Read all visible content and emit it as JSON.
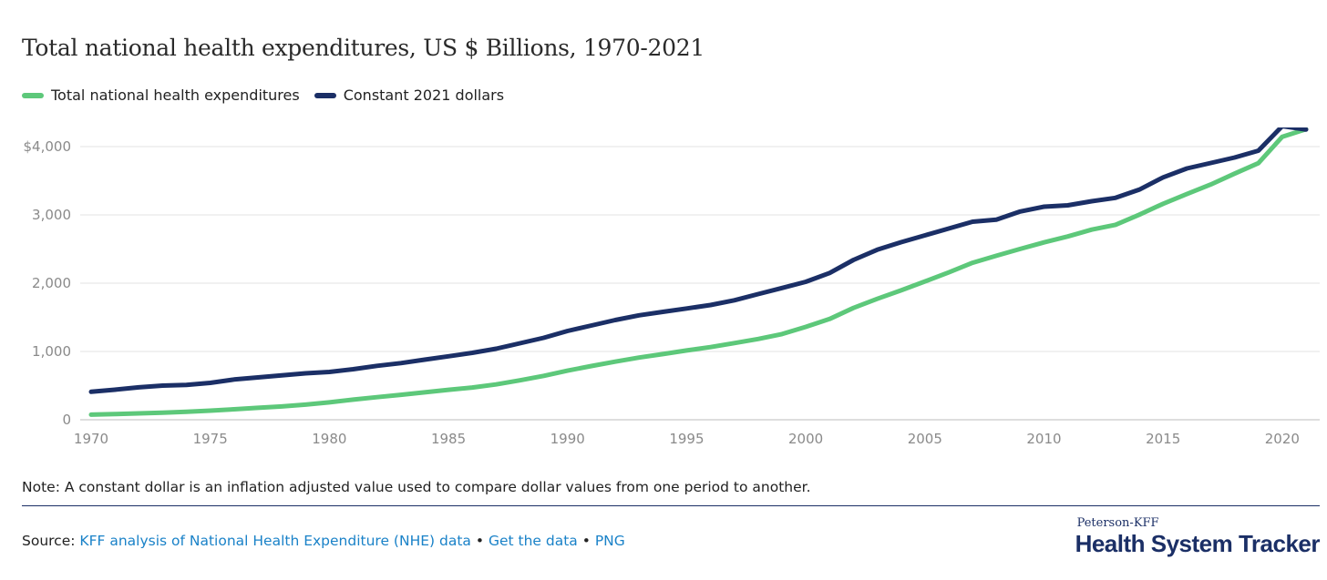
{
  "chart_data": {
    "type": "line",
    "title": "Total national health expenditures, US $ Billions, 1970-2021",
    "x": [
      1970,
      1971,
      1972,
      1973,
      1974,
      1975,
      1976,
      1977,
      1978,
      1979,
      1980,
      1981,
      1982,
      1983,
      1984,
      1985,
      1986,
      1987,
      1988,
      1989,
      1990,
      1991,
      1992,
      1993,
      1994,
      1995,
      1996,
      1997,
      1998,
      1999,
      2000,
      2001,
      2002,
      2003,
      2004,
      2005,
      2006,
      2007,
      2008,
      2009,
      2010,
      2011,
      2012,
      2013,
      2014,
      2015,
      2016,
      2017,
      2018,
      2019,
      2020,
      2021
    ],
    "series": [
      {
        "name": "Total national health expenditures",
        "color": "#5dc87a",
        "values": [
          74,
          83,
          93,
          103,
          116,
          133,
          153,
          174,
          195,
          221,
          255,
          295,
          331,
          365,
          402,
          439,
          472,
          517,
          577,
          643,
          719,
          787,
          851,
          911,
          961,
          1014,
          1064,
          1122,
          1183,
          1254,
          1360,
          1476,
          1638,
          1771,
          1895,
          2025,
          2158,
          2299,
          2401,
          2501,
          2597,
          2684,
          2784,
          2854,
          3003,
          3162,
          3306,
          3446,
          3604,
          3757,
          4144,
          4255
        ]
      },
      {
        "name": "Constant 2021 dollars",
        "color": "#1b2f66",
        "values": [
          410,
          440,
          475,
          500,
          510,
          540,
          590,
          620,
          650,
          680,
          700,
          740,
          790,
          830,
          880,
          930,
          980,
          1040,
          1120,
          1200,
          1300,
          1380,
          1460,
          1530,
          1580,
          1630,
          1680,
          1750,
          1840,
          1930,
          2020,
          2150,
          2340,
          2490,
          2600,
          2700,
          2800,
          2900,
          2930,
          3050,
          3120,
          3140,
          3200,
          3250,
          3370,
          3550,
          3680,
          3760,
          3840,
          3940,
          4300,
          4250
        ]
      }
    ],
    "y_ticks": [
      "0",
      "1,000",
      "2,000",
      "3,000",
      "$4,000"
    ],
    "y_tick_values": [
      0,
      1000,
      2000,
      3000,
      4000
    ],
    "x_ticks": [
      "1970",
      "1975",
      "1980",
      "1985",
      "1990",
      "1995",
      "2000",
      "2005",
      "2010",
      "2015",
      "2020"
    ],
    "x_tick_values": [
      1970,
      1975,
      1980,
      1985,
      1990,
      1995,
      2000,
      2005,
      2010,
      2015,
      2020
    ],
    "xlim": [
      1970,
      2021
    ],
    "ylim": [
      0,
      4400
    ],
    "grid": true,
    "legend": "top-left"
  },
  "note": "Note: A constant dollar is an inflation adjusted value used to compare dollar values from one period to another.",
  "source": {
    "label": "Source:",
    "link1": "KFF analysis of National Health Expenditure (NHE) data",
    "sep": "•",
    "link2": "Get the data",
    "link3": "PNG"
  },
  "brand": {
    "top": "Peterson-KFF",
    "main": "Health System Tracker"
  }
}
